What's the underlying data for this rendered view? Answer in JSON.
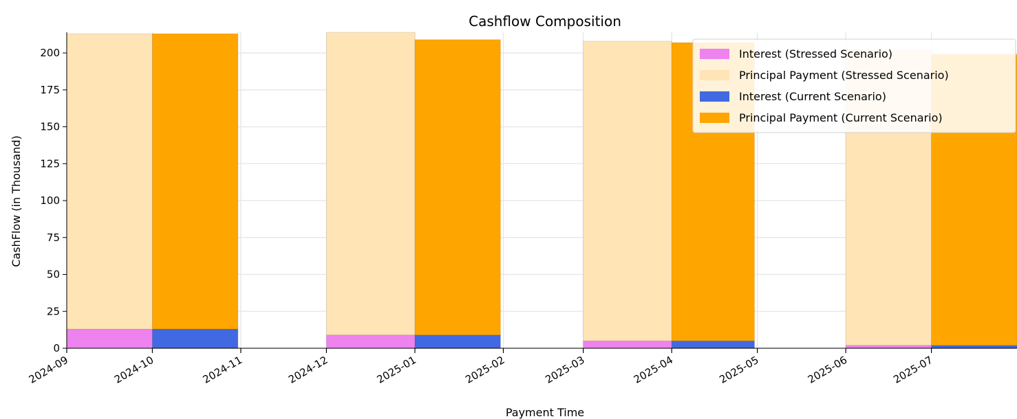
{
  "chart_data": {
    "type": "bar",
    "title": "Cashflow Composition",
    "xlabel": "Payment Time",
    "ylabel": "CashFlow (in Thousand)",
    "ylim": [
      0,
      214
    ],
    "yticks": [
      0,
      25,
      50,
      75,
      100,
      125,
      150,
      175,
      200
    ],
    "x_axis": {
      "type": "date",
      "range": [
        "2024-09-01",
        "2025-07-31"
      ],
      "ticks": [
        "2024-09",
        "2024-10",
        "2024-11",
        "2024-12",
        "2025-01",
        "2025-02",
        "2025-03",
        "2025-04",
        "2025-05",
        "2025-06",
        "2025-07"
      ]
    },
    "grid": true,
    "legend_position": "top-right",
    "series": [
      {
        "name": "Interest (Stressed Scenario)",
        "color": "#EE82EE",
        "stack": "stressed",
        "x_start": [
          "2024-09-01",
          "2024-12-01",
          "2025-03-01",
          "2025-06-01"
        ],
        "x_end": [
          "2024-10-01",
          "2025-01-01",
          "2025-04-01",
          "2025-07-01"
        ],
        "values": [
          13,
          9,
          5,
          2
        ]
      },
      {
        "name": "Principal Payment (Stressed Scenario)",
        "color": "#FFE4B5",
        "stack": "stressed",
        "x_start": [
          "2024-09-01",
          "2024-12-01",
          "2025-03-01",
          "2025-06-01"
        ],
        "x_end": [
          "2024-10-01",
          "2025-01-01",
          "2025-04-01",
          "2025-07-01"
        ],
        "values": [
          200,
          205,
          203,
          200
        ]
      },
      {
        "name": "Interest (Current Scenario)",
        "color": "#4169E1",
        "stack": "current",
        "x_start": [
          "2024-10-01",
          "2025-01-01",
          "2025-04-01",
          "2025-07-01"
        ],
        "x_end": [
          "2024-10-31",
          "2025-01-31",
          "2025-04-30",
          "2025-07-31"
        ],
        "values": [
          13,
          9,
          5,
          2
        ]
      },
      {
        "name": "Principal Payment (Current Scenario)",
        "color": "#FFA500",
        "stack": "current",
        "x_start": [
          "2024-10-01",
          "2025-01-01",
          "2025-04-01",
          "2025-07-01"
        ],
        "x_end": [
          "2024-10-31",
          "2025-01-31",
          "2025-04-30",
          "2025-07-31"
        ],
        "values": [
          200,
          200,
          202,
          197
        ]
      }
    ]
  }
}
